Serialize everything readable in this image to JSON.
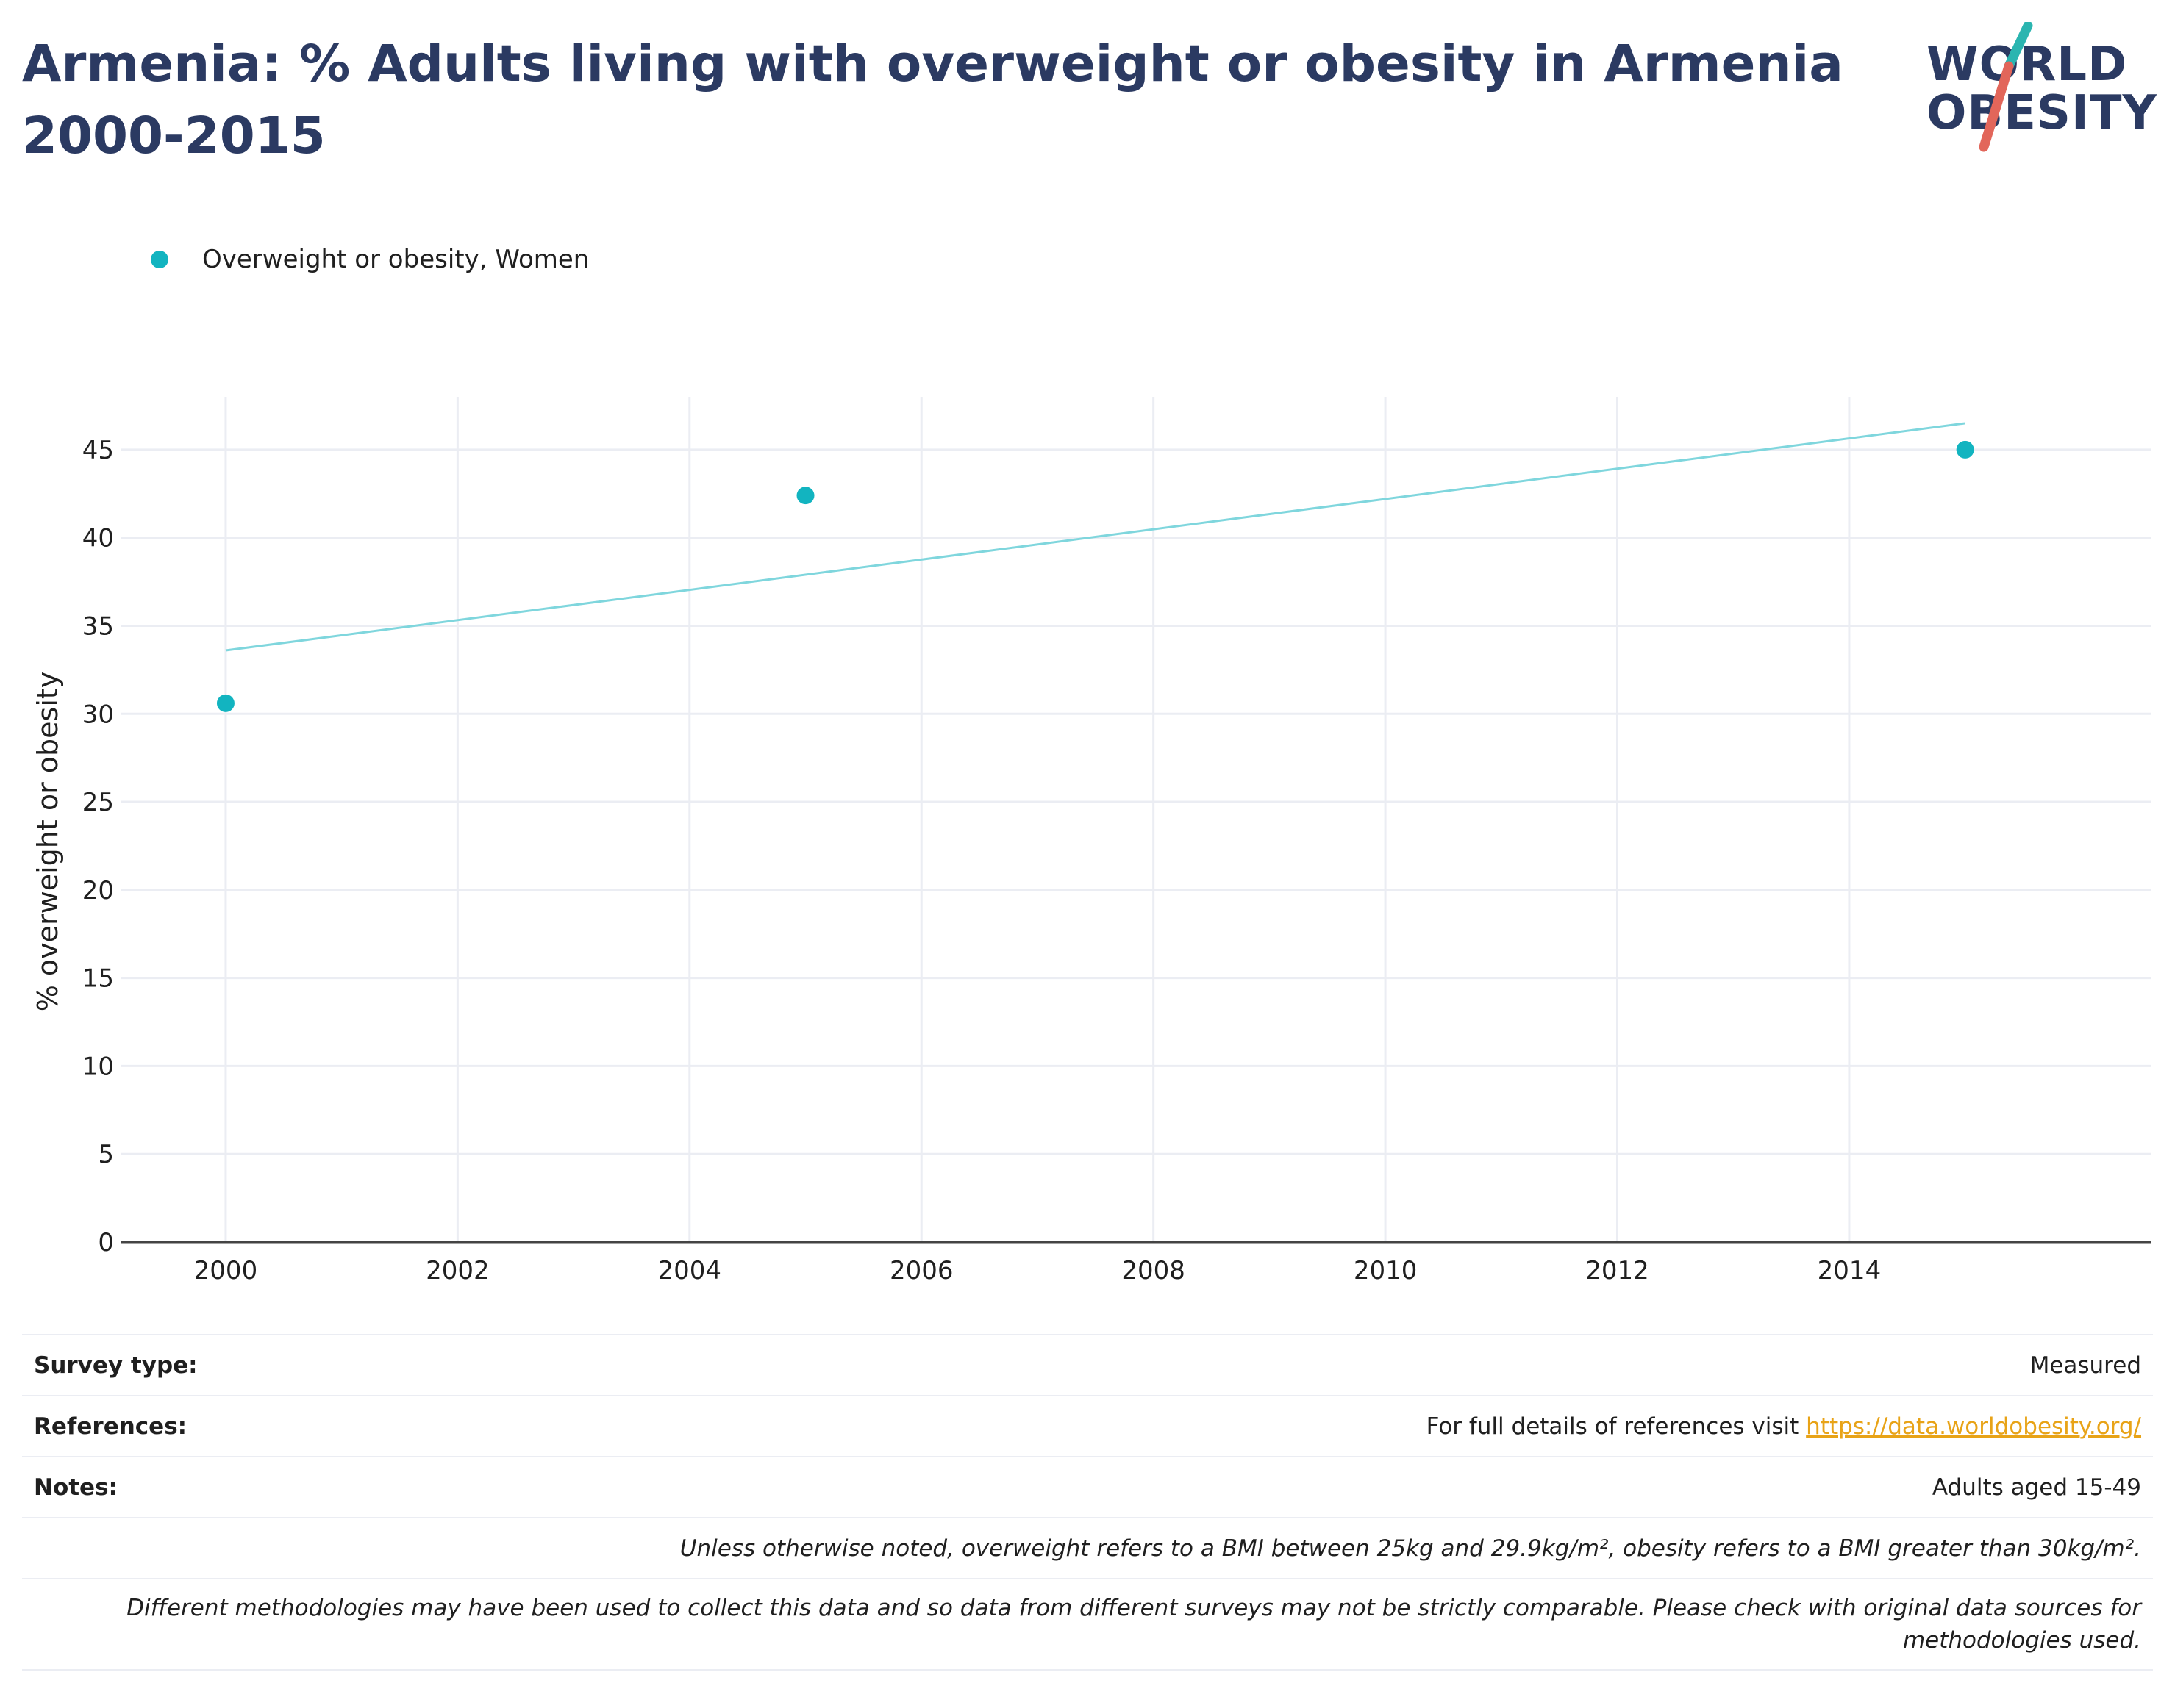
{
  "header": {
    "title": "Armenia: % Adults living with overweight or obesity in Armenia 2000-2015",
    "logo_line1": "WORLD",
    "logo_line2": "OBESITY"
  },
  "colors": {
    "series": "#12b4c0",
    "trend": "#7fd6dd",
    "title": "#2b3a62",
    "link": "#e8a317",
    "logo_teal": "#2bb5b0",
    "logo_red": "#e2665a"
  },
  "chart_data": {
    "type": "scatter",
    "title": "Armenia: % Adults living with overweight or obesity in Armenia 2000-2015",
    "xlabel": "",
    "ylabel": "% overweight or obesity",
    "xlim": [
      1999.1,
      2016.6
    ],
    "ylim": [
      0,
      48
    ],
    "x_ticks": [
      2000,
      2002,
      2004,
      2006,
      2008,
      2010,
      2012,
      2014
    ],
    "y_ticks": [
      0,
      5,
      10,
      15,
      20,
      25,
      30,
      35,
      40,
      45
    ],
    "grid": true,
    "legend_position": "top-left",
    "series": [
      {
        "name": "Overweight or obesity, Women",
        "x": [
          2000,
          2005,
          2015
        ],
        "y": [
          30.6,
          42.4,
          45.0
        ]
      }
    ],
    "trendline": {
      "x": [
        2000,
        2015
      ],
      "y": [
        33.6,
        46.5
      ]
    }
  },
  "info": {
    "survey_type_label": "Survey type:",
    "survey_type_value": "Measured",
    "references_label": "References:",
    "references_text": "For full details of references visit ",
    "references_link": "https://data.worldobesity.org/",
    "notes_label": "Notes:",
    "notes_value": "Adults aged 15-49",
    "bmi_note": "Unless otherwise noted, overweight refers to a BMI between 25kg and 29.9kg/m², obesity refers to a BMI greater than 30kg/m².",
    "methodology_note": "Different methodologies may have been used to collect this data and so data from different surveys may not be strictly comparable. Please check with original data sources for methodologies used."
  }
}
